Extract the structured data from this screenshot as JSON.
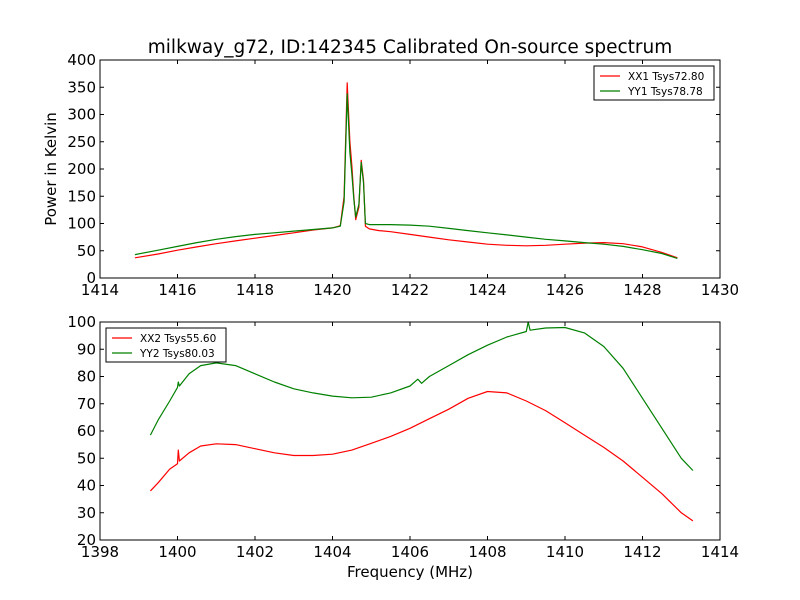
{
  "title": "milkway_g72, ID:142345 Calibrated On-source spectrum",
  "chart_data": [
    {
      "type": "line",
      "panel": "top",
      "xlim": [
        1414,
        1430
      ],
      "ylim": [
        0,
        400
      ],
      "xticks": [
        1414,
        1416,
        1418,
        1420,
        1422,
        1424,
        1426,
        1428,
        1430
      ],
      "yticks": [
        0,
        50,
        100,
        150,
        200,
        250,
        300,
        350,
        400
      ],
      "xlabel": "",
      "ylabel": "Power in Kelvin",
      "legend_position": "top-right",
      "series": [
        {
          "name": "XX1 Tsys72.80",
          "color": "#ff0000",
          "points": [
            [
              1414.9,
              37
            ],
            [
              1415.5,
              44
            ],
            [
              1416,
              51
            ],
            [
              1416.5,
              57
            ],
            [
              1417,
              63
            ],
            [
              1417.5,
              68
            ],
            [
              1418,
              73
            ],
            [
              1418.5,
              78
            ],
            [
              1419,
              83
            ],
            [
              1419.5,
              88
            ],
            [
              1420,
              92
            ],
            [
              1420.2,
              96
            ],
            [
              1420.3,
              150
            ],
            [
              1420.38,
              358
            ],
            [
              1420.45,
              250
            ],
            [
              1420.5,
              205
            ],
            [
              1420.55,
              150
            ],
            [
              1420.6,
              107
            ],
            [
              1420.68,
              130
            ],
            [
              1420.74,
              216
            ],
            [
              1420.8,
              180
            ],
            [
              1420.85,
              95
            ],
            [
              1420.95,
              90
            ],
            [
              1421.2,
              87
            ],
            [
              1421.5,
              85
            ],
            [
              1422,
              80
            ],
            [
              1422.5,
              75
            ],
            [
              1423,
              70
            ],
            [
              1423.5,
              66
            ],
            [
              1424,
              62
            ],
            [
              1424.5,
              60
            ],
            [
              1425,
              59
            ],
            [
              1425.5,
              60
            ],
            [
              1426,
              62
            ],
            [
              1426.5,
              64
            ],
            [
              1427,
              65
            ],
            [
              1427.5,
              63
            ],
            [
              1428,
              57
            ],
            [
              1428.5,
              47
            ],
            [
              1428.9,
              37
            ]
          ]
        },
        {
          "name": "YY1 Tsys78.78",
          "color": "#008000",
          "points": [
            [
              1414.9,
              43
            ],
            [
              1415.5,
              51
            ],
            [
              1416,
              58
            ],
            [
              1416.5,
              65
            ],
            [
              1417,
              71
            ],
            [
              1417.5,
              76
            ],
            [
              1418,
              80
            ],
            [
              1418.5,
              83
            ],
            [
              1419,
              86
            ],
            [
              1419.5,
              89
            ],
            [
              1420,
              92
            ],
            [
              1420.2,
              95
            ],
            [
              1420.3,
              140
            ],
            [
              1420.38,
              338
            ],
            [
              1420.45,
              230
            ],
            [
              1420.5,
              190
            ],
            [
              1420.55,
              145
            ],
            [
              1420.6,
              112
            ],
            [
              1420.68,
              135
            ],
            [
              1420.74,
              212
            ],
            [
              1420.8,
              175
            ],
            [
              1420.85,
              100
            ],
            [
              1420.95,
              98
            ],
            [
              1421.5,
              98
            ],
            [
              1422,
              97
            ],
            [
              1422.5,
              95
            ],
            [
              1423,
              91
            ],
            [
              1423.5,
              87
            ],
            [
              1424,
              83
            ],
            [
              1424.5,
              79
            ],
            [
              1425,
              75
            ],
            [
              1425.5,
              71
            ],
            [
              1426,
              68
            ],
            [
              1426.5,
              65
            ],
            [
              1427,
              62
            ],
            [
              1427.5,
              58
            ],
            [
              1428,
              52
            ],
            [
              1428.5,
              45
            ],
            [
              1428.9,
              36
            ]
          ]
        }
      ]
    },
    {
      "type": "line",
      "panel": "bottom",
      "xlim": [
        1398,
        1414
      ],
      "ylim": [
        20,
        100
      ],
      "xticks": [
        1398,
        1400,
        1402,
        1404,
        1406,
        1408,
        1410,
        1412,
        1414
      ],
      "yticks": [
        20,
        30,
        40,
        50,
        60,
        70,
        80,
        90,
        100
      ],
      "xlabel": "Frequency (MHz)",
      "ylabel": "",
      "legend_position": "top-left",
      "series": [
        {
          "name": "XX2 Tsys55.60",
          "color": "#ff0000",
          "points": [
            [
              1399.3,
              38
            ],
            [
              1399.5,
              41
            ],
            [
              1399.8,
              46
            ],
            [
              1400,
              48
            ],
            [
              1400.02,
              53
            ],
            [
              1400.05,
              49
            ],
            [
              1400.3,
              52
            ],
            [
              1400.6,
              54.5
            ],
            [
              1401,
              55.3
            ],
            [
              1401.5,
              55
            ],
            [
              1402,
              53.5
            ],
            [
              1402.5,
              52
            ],
            [
              1403,
              51
            ],
            [
              1403.5,
              51
            ],
            [
              1404,
              51.5
            ],
            [
              1404.5,
              53
            ],
            [
              1405,
              55.5
            ],
            [
              1405.5,
              58
            ],
            [
              1406,
              61
            ],
            [
              1406.5,
              64.5
            ],
            [
              1407,
              68
            ],
            [
              1407.5,
              72
            ],
            [
              1408,
              74.5
            ],
            [
              1408.5,
              74
            ],
            [
              1409,
              71
            ],
            [
              1409.5,
              67.5
            ],
            [
              1410,
              63
            ],
            [
              1410.5,
              58.5
            ],
            [
              1411,
              54
            ],
            [
              1411.5,
              49
            ],
            [
              1412,
              43
            ],
            [
              1412.5,
              37
            ],
            [
              1413,
              30
            ],
            [
              1413.3,
              27
            ]
          ]
        },
        {
          "name": "YY2 Tsys80.03",
          "color": "#008000",
          "points": [
            [
              1399.3,
              58.5
            ],
            [
              1399.5,
              64
            ],
            [
              1399.8,
              71
            ],
            [
              1400,
              76
            ],
            [
              1400.02,
              78
            ],
            [
              1400.05,
              76.5
            ],
            [
              1400.3,
              81
            ],
            [
              1400.6,
              84
            ],
            [
              1401,
              85
            ],
            [
              1401.5,
              84
            ],
            [
              1402,
              81
            ],
            [
              1402.5,
              78
            ],
            [
              1403,
              75.5
            ],
            [
              1403.5,
              74
            ],
            [
              1404,
              72.8
            ],
            [
              1404.5,
              72.2
            ],
            [
              1405,
              72.4
            ],
            [
              1405.5,
              74
            ],
            [
              1406,
              76.5
            ],
            [
              1406.2,
              79
            ],
            [
              1406.3,
              77.5
            ],
            [
              1406.5,
              80
            ],
            [
              1407,
              84
            ],
            [
              1407.5,
              88
            ],
            [
              1408,
              91.5
            ],
            [
              1408.5,
              94.5
            ],
            [
              1409,
              96.5
            ],
            [
              1409.05,
              100
            ],
            [
              1409.1,
              97
            ],
            [
              1409.5,
              97.8
            ],
            [
              1410,
              98
            ],
            [
              1410.5,
              96
            ],
            [
              1411,
              91
            ],
            [
              1411.5,
              83
            ],
            [
              1412,
              72
            ],
            [
              1412.5,
              61
            ],
            [
              1413,
              50
            ],
            [
              1413.3,
              45.5
            ]
          ]
        }
      ]
    }
  ]
}
